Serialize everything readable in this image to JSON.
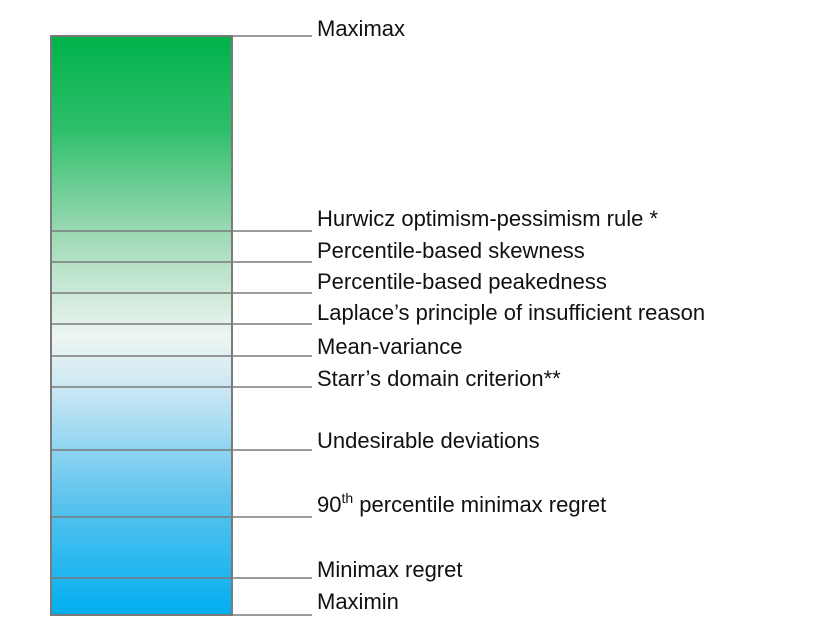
{
  "scale": {
    "gradient_colors": {
      "top": "#00b24a",
      "middle": "#eef5f2",
      "bottom": "#00aeef"
    },
    "border_color": "#7a7a7a"
  },
  "criteria": [
    {
      "text": "Maximax"
    },
    {
      "text": "Hurwicz optimism-pessimism rule *"
    },
    {
      "text": "Percentile-based skewness"
    },
    {
      "text": "Percentile-based peakedness"
    },
    {
      "text": "Laplace’s principle of insufficient reason"
    },
    {
      "text": "Mean-variance"
    },
    {
      "text": "Starr’s domain criterion**"
    },
    {
      "text": "Undesirable deviations"
    },
    {
      "text": "90",
      "sup": "th",
      "rest": " percentile minimax regret"
    },
    {
      "text": "Minimax regret"
    },
    {
      "text": "Maximin"
    }
  ]
}
